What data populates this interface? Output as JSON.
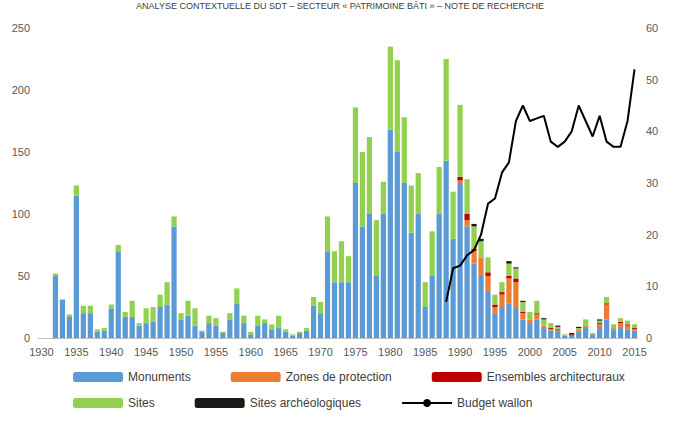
{
  "chart_data": {
    "type": "bar",
    "title": "ANALYSE CONTEXTUELLE DU SDT – SECTEUR « PATRIMOINE BÂTI » – NOTE DE RECHERCHE",
    "stacked": true,
    "grid": false,
    "legend": "bottom",
    "categories": [
      "1930",
      null,
      null,
      null,
      null,
      "1935",
      null,
      null,
      null,
      null,
      "1940",
      null,
      null,
      null,
      null,
      "1945",
      null,
      null,
      null,
      null,
      "1950",
      null,
      null,
      null,
      null,
      "1955",
      null,
      null,
      null,
      null,
      "1960",
      null,
      null,
      null,
      null,
      "1965",
      null,
      null,
      null,
      null,
      "1970",
      null,
      null,
      null,
      null,
      "1975",
      null,
      null,
      null,
      null,
      "1980",
      null,
      null,
      null,
      null,
      "1985",
      null,
      null,
      null,
      null,
      "1990",
      null,
      null,
      null,
      null,
      "1995",
      null,
      null,
      null,
      null,
      "2000",
      null,
      null,
      null,
      null,
      "2005",
      null,
      null,
      null,
      null,
      "2010",
      null,
      null,
      null,
      null,
      "2015"
    ],
    "ylim": [
      0,
      250
    ],
    "yticks": [
      0,
      50,
      100,
      150,
      200,
      250
    ],
    "y2lim": [
      0,
      60
    ],
    "y2ticks": [
      0,
      10,
      20,
      30,
      40,
      50,
      60
    ],
    "series": [
      {
        "name": "Monuments",
        "color": "#5B9BD5",
        "values": [
          0,
          0,
          50,
          31,
          17,
          115,
          20,
          20,
          5,
          6,
          24,
          70,
          17,
          17,
          10,
          12,
          13,
          25,
          27,
          90,
          15,
          18,
          10,
          5,
          12,
          10,
          4,
          15,
          28,
          12,
          3,
          10,
          12,
          7,
          8,
          5,
          2,
          4,
          6,
          26,
          20,
          70,
          45,
          45,
          45,
          125,
          90,
          100,
          50,
          100,
          168,
          150,
          125,
          85,
          100,
          25,
          50,
          100,
          143,
          80,
          125,
          90,
          60,
          50,
          38,
          20,
          25,
          28,
          25,
          15,
          12,
          15,
          8,
          6,
          5,
          2,
          2,
          5,
          8,
          3,
          8,
          15,
          7,
          8,
          7,
          6
        ]
      },
      {
        "name": "Zones de protection",
        "color": "#ED7D31",
        "values": [
          0,
          0,
          0,
          0,
          0,
          0,
          0,
          0,
          0,
          0,
          0,
          0,
          0,
          0,
          0,
          0,
          0,
          0,
          0,
          0,
          0,
          0,
          0,
          0,
          0,
          0,
          0,
          0,
          0,
          0,
          0,
          0,
          0,
          0,
          0,
          0,
          0,
          0,
          0,
          0,
          0,
          0,
          0,
          0,
          0,
          0,
          0,
          0,
          0,
          0,
          0,
          0,
          0,
          0,
          0,
          0,
          0,
          0,
          0,
          0,
          2,
          5,
          10,
          15,
          12,
          5,
          10,
          20,
          20,
          5,
          3,
          4,
          2,
          1,
          1,
          0,
          0,
          2,
          2,
          0,
          3,
          12,
          1,
          4,
          3,
          1
        ]
      },
      {
        "name": "Ensembles architecturaux",
        "color": "#C00000",
        "values": [
          0,
          0,
          0,
          0,
          0,
          0,
          0,
          0,
          0,
          0,
          0,
          0,
          0,
          0,
          0,
          0,
          0,
          0,
          0,
          0,
          0,
          0,
          0,
          0,
          0,
          0,
          0,
          0,
          0,
          0,
          0,
          0,
          0,
          0,
          0,
          0,
          0,
          0,
          0,
          0,
          0,
          0,
          0,
          0,
          0,
          0,
          0,
          0,
          0,
          0,
          0,
          0,
          0,
          0,
          0,
          0,
          0,
          0,
          0,
          0,
          3,
          5,
          2,
          0,
          3,
          2,
          2,
          2,
          3,
          1,
          0,
          1,
          0,
          1,
          1,
          0,
          1,
          0,
          0,
          0,
          1,
          1,
          0,
          1,
          1,
          1
        ]
      },
      {
        "name": "Sites",
        "color": "#92D050",
        "values": [
          0,
          0,
          2,
          0,
          2,
          8,
          6,
          6,
          2,
          2,
          3,
          5,
          4,
          13,
          2,
          12,
          12,
          10,
          18,
          8,
          5,
          12,
          14,
          1,
          6,
          6,
          1,
          5,
          12,
          6,
          2,
          8,
          3,
          4,
          10,
          2,
          1,
          1,
          2,
          7,
          9,
          28,
          25,
          33,
          21,
          61,
          60,
          62,
          45,
          26,
          67,
          74,
          53,
          38,
          33,
          20,
          36,
          38,
          82,
          38,
          58,
          28,
          18,
          13,
          12,
          8,
          8,
          10,
          8,
          8,
          6,
          10,
          5,
          4,
          2,
          1,
          0,
          1,
          5,
          1,
          2,
          5,
          3,
          3,
          3,
          3
        ]
      },
      {
        "name": "Sites archéologiques",
        "color": "#1A1A1A",
        "values": [
          0,
          0,
          0,
          0,
          0,
          0,
          0,
          0,
          0,
          0,
          0,
          0,
          0,
          0,
          0,
          0,
          0,
          0,
          0,
          0,
          0,
          0,
          0,
          0,
          0,
          0,
          0,
          0,
          0,
          0,
          0,
          0,
          0,
          0,
          0,
          0,
          0,
          0,
          0,
          0,
          0,
          0,
          0,
          0,
          0,
          0,
          0,
          0,
          0,
          0,
          0,
          0,
          0,
          0,
          0,
          0,
          0,
          0,
          0,
          0,
          0,
          0,
          2,
          2,
          0,
          0,
          0,
          2,
          1,
          1,
          0,
          0,
          1,
          0,
          1,
          0,
          1,
          1,
          0,
          0,
          1,
          0,
          0,
          0,
          0,
          0
        ]
      },
      {
        "name": "Budget wallon",
        "color": "#000000",
        "type": "line",
        "axis": "y2",
        "values": [
          null,
          null,
          null,
          null,
          null,
          null,
          null,
          null,
          null,
          null,
          null,
          null,
          null,
          null,
          null,
          null,
          null,
          null,
          null,
          null,
          null,
          null,
          null,
          null,
          null,
          null,
          null,
          null,
          null,
          null,
          null,
          null,
          null,
          null,
          null,
          null,
          null,
          null,
          null,
          null,
          null,
          null,
          null,
          null,
          null,
          null,
          null,
          null,
          null,
          null,
          null,
          null,
          null,
          null,
          null,
          null,
          null,
          null,
          7,
          13.5,
          14,
          16,
          17,
          20,
          26,
          27,
          32,
          34,
          42,
          45,
          42,
          42.5,
          43,
          38,
          37,
          38,
          40,
          45,
          42,
          39,
          43,
          38,
          37,
          37,
          42,
          52
        ]
      }
    ]
  }
}
